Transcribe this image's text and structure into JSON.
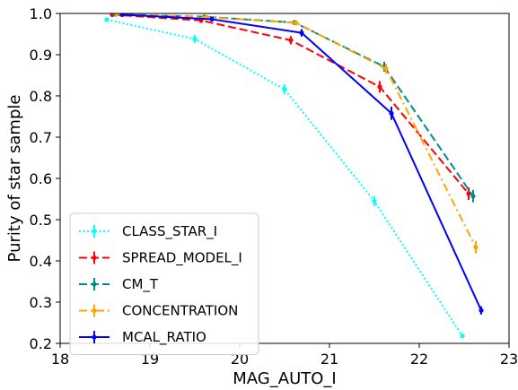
{
  "chart_data": {
    "type": "line",
    "title": "",
    "xlabel": "MAG_AUTO_I",
    "ylabel": "Purity of star sample",
    "xlim": [
      18,
      23
    ],
    "ylim": [
      0.2,
      1.0
    ],
    "xticks": [
      "18",
      "19",
      "20",
      "21",
      "22",
      "23"
    ],
    "yticks": [
      "0.2",
      "0.3",
      "0.4",
      "0.5",
      "0.6",
      "0.7",
      "0.8",
      "0.9",
      "1.0"
    ],
    "grid": false,
    "legend_position": "bottom-left",
    "series": [
      {
        "name": "CLASS_STAR_I",
        "color": "#00ffff",
        "dash": "dotted",
        "marker": "point",
        "x": [
          18.52,
          19.5,
          20.5,
          21.5,
          22.48
        ],
        "y": [
          0.985,
          0.938,
          0.816,
          0.545,
          0.218
        ],
        "yerr": [
          0.005,
          0.01,
          0.012,
          0.012,
          0.005
        ]
      },
      {
        "name": "SPREAD_MODEL_I",
        "color": "#ff0000",
        "dash": "dashed",
        "marker": "point",
        "x": [
          18.58,
          19.57,
          20.57,
          21.56,
          22.55
        ],
        "y": [
          0.997,
          0.983,
          0.935,
          0.822,
          0.563
        ],
        "yerr": [
          0.003,
          0.006,
          0.01,
          0.014,
          0.015
        ]
      },
      {
        "name": "CM_T",
        "color": "#008b8b",
        "dash": "dashed",
        "marker": "point",
        "x": [
          18.61,
          19.61,
          20.61,
          21.61,
          22.6
        ],
        "y": [
          0.998,
          0.992,
          0.978,
          0.871,
          0.557
        ],
        "yerr": [
          0.002,
          0.004,
          0.006,
          0.012,
          0.015
        ]
      },
      {
        "name": "CONCENTRATION",
        "color": "#ffa500",
        "dash": "dashdot",
        "marker": "point",
        "x": [
          18.63,
          19.63,
          20.63,
          21.63,
          22.63
        ],
        "y": [
          0.998,
          0.991,
          0.977,
          0.866,
          0.433
        ],
        "yerr": [
          0.002,
          0.004,
          0.006,
          0.012,
          0.015
        ]
      },
      {
        "name": "MCAL_RATIO",
        "color": "#0000ff",
        "dash": "solid",
        "marker": "point",
        "x": [
          18.69,
          19.69,
          20.69,
          21.69,
          22.69
        ],
        "y": [
          0.997,
          0.986,
          0.953,
          0.758,
          0.28
        ],
        "yerr": [
          0.002,
          0.005,
          0.009,
          0.016,
          0.01
        ]
      }
    ]
  }
}
